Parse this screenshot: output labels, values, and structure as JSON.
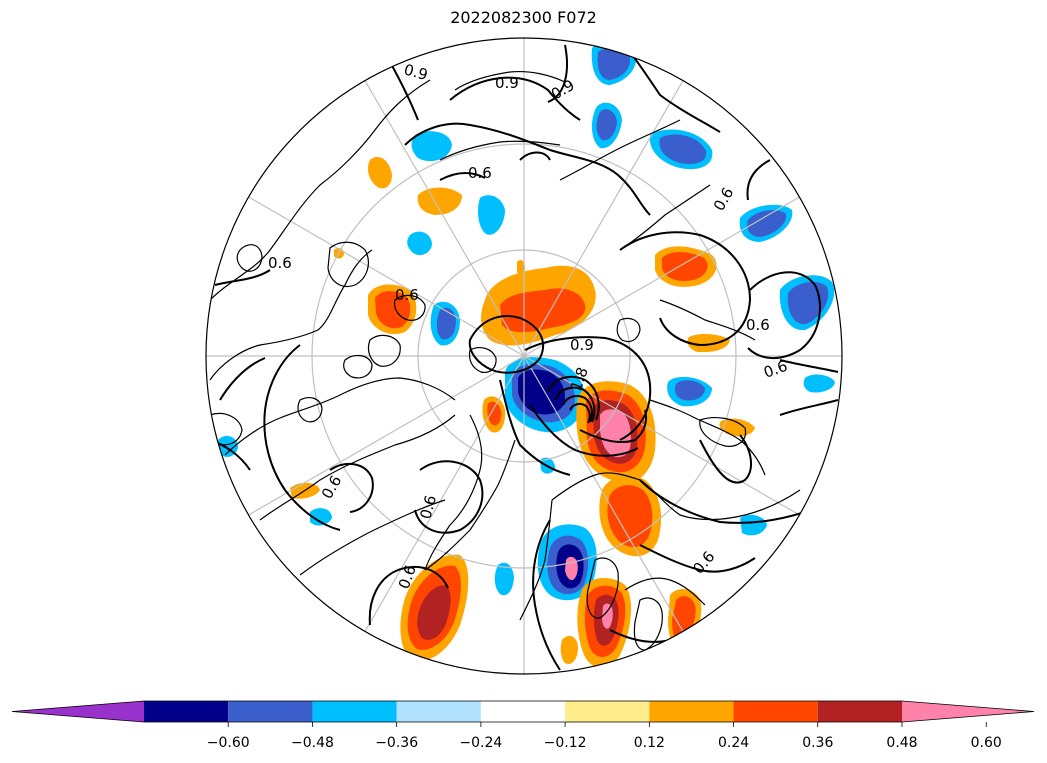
{
  "title": "2022082300 F072",
  "contour_labels": [
    "0.9",
    "0.9",
    "0.9",
    "0.6",
    "0.6",
    "0.6",
    "0.6",
    "0.6",
    "0.6",
    "0.9",
    "1.8",
    "0.6",
    "0.6",
    "0.6",
    "0.6"
  ],
  "colorbar": {
    "colors": [
      "#9932CC",
      "#00008B",
      "#3A5FCD",
      "#00BFFF",
      "#B0E2FF",
      "#FFFFFF",
      "#FFEC8B",
      "#FFA500",
      "#FF4500",
      "#B22222",
      "#FF82AB"
    ],
    "ticks": [
      "−0.60",
      "−0.48",
      "−0.36",
      "−0.24",
      "−0.12",
      "0.12",
      "0.24",
      "0.36",
      "0.48",
      "0.60"
    ]
  },
  "colors": {
    "coast": "#000000",
    "grid": "#c0c0c0",
    "contour": "#000000"
  }
}
